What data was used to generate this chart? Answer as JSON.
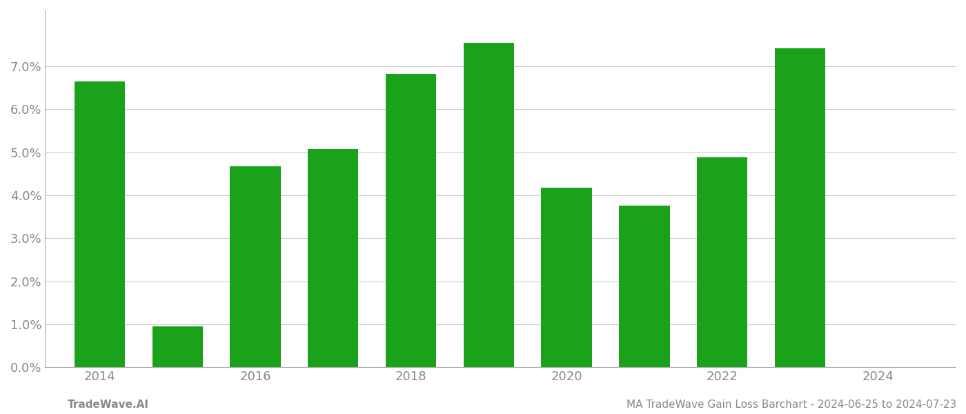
{
  "years": [
    2014,
    2015,
    2016,
    2017,
    2018,
    2019,
    2020,
    2021,
    2022,
    2023
  ],
  "values": [
    0.0665,
    0.0095,
    0.0468,
    0.0508,
    0.0682,
    0.0755,
    0.0417,
    0.0375,
    0.0488,
    0.0742
  ],
  "bar_color": "#1aa31a",
  "ylim": [
    0,
    0.083
  ],
  "yticks": [
    0.0,
    0.01,
    0.02,
    0.03,
    0.04,
    0.05,
    0.06,
    0.07
  ],
  "xlabel_ticks": [
    2014,
    2016,
    2018,
    2020,
    2022,
    2024
  ],
  "footer_left": "TradeWave.AI",
  "footer_right": "MA TradeWave Gain Loss Barchart - 2024-06-25 to 2024-07-23",
  "background_color": "#ffffff",
  "grid_color": "#cccccc",
  "text_color": "#888888",
  "footer_color": "#888888",
  "bar_width": 0.65,
  "xlim_left": 2013.3,
  "xlim_right": 2025.0
}
